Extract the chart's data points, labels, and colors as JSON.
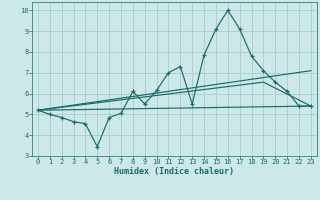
{
  "xlabel": "Humidex (Indice chaleur)",
  "bg_color": "#cce8e8",
  "grid_color": "#aacccc",
  "line_color": "#1a6b6b",
  "xlim": [
    -0.5,
    23.5
  ],
  "ylim": [
    3.0,
    10.4
  ],
  "xticks": [
    0,
    1,
    2,
    3,
    4,
    5,
    6,
    7,
    8,
    9,
    10,
    11,
    12,
    13,
    14,
    15,
    16,
    17,
    18,
    19,
    20,
    21,
    22,
    23
  ],
  "yticks": [
    3,
    4,
    5,
    6,
    7,
    8,
    9,
    10
  ],
  "series1_x": [
    0,
    1,
    2,
    3,
    4,
    5,
    6,
    7,
    8,
    9,
    10,
    11,
    12,
    13,
    14,
    15,
    16,
    17,
    18,
    19,
    20,
    21,
    22,
    23
  ],
  "series1_y": [
    5.2,
    5.0,
    4.85,
    4.65,
    4.55,
    3.45,
    4.85,
    5.05,
    6.1,
    5.5,
    6.15,
    7.0,
    7.3,
    5.5,
    7.85,
    9.1,
    10.0,
    9.1,
    7.8,
    7.1,
    6.55,
    6.1,
    5.4,
    5.4
  ],
  "series2_x": [
    0,
    23
  ],
  "series2_y": [
    5.2,
    5.4
  ],
  "series3_x": [
    0,
    19,
    23
  ],
  "series3_y": [
    5.2,
    6.55,
    5.4
  ],
  "series4_x": [
    0,
    23
  ],
  "series4_y": [
    5.2,
    7.1
  ]
}
